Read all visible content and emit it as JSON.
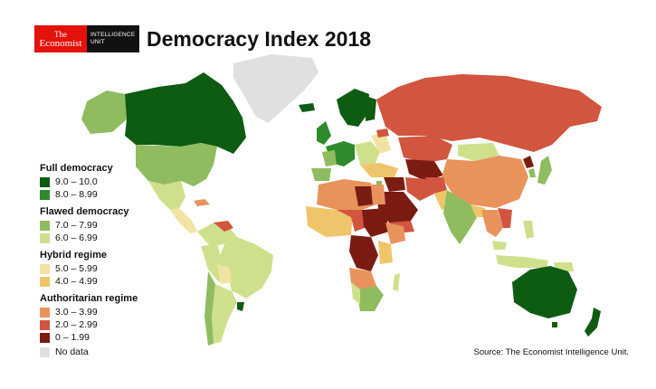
{
  "header": {
    "logo_line1": "The",
    "logo_line2": "Economist",
    "unit_line1": "INTELLIGENCE",
    "unit_line2": "UNIT",
    "title": "Democracy Index 2018"
  },
  "legend": {
    "groups": [
      {
        "heading": "Full democracy",
        "items": [
          {
            "label": "9.0 – 10.0",
            "color": "#0d5c12"
          },
          {
            "label": "8.0 – 8.99",
            "color": "#2e8b2c"
          }
        ]
      },
      {
        "heading": "Flawed democracy",
        "items": [
          {
            "label": "7.0 – 7.99",
            "color": "#8fbc5e"
          },
          {
            "label": "6.0 – 6.99",
            "color": "#cfe08c"
          }
        ]
      },
      {
        "heading": "Hybrid regime",
        "items": [
          {
            "label": "5.0 – 5.99",
            "color": "#f2e3a2"
          },
          {
            "label": "4.0 – 4.99",
            "color": "#efc56b"
          }
        ]
      },
      {
        "heading": "Authoritarian regime",
        "items": [
          {
            "label": "3.0 – 3.99",
            "color": "#e8935c"
          },
          {
            "label": "2.0 – 2.99",
            "color": "#d2553f"
          },
          {
            "label": "0 – 1.99",
            "color": "#7a1c12"
          }
        ]
      }
    ],
    "nodata": {
      "label": "No data",
      "color": "#e0e0e0"
    }
  },
  "source": "Source: The Economist Intelligence Unit."
}
